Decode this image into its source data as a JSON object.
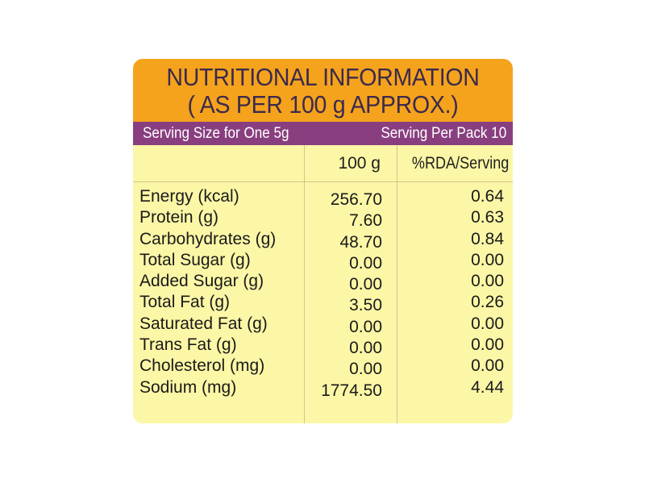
{
  "title": {
    "line1": "NUTRITIONAL INFORMATION",
    "line2": "( AS PER 100 g APPROX.)"
  },
  "serving": {
    "size": "Serving Size for One 5g",
    "per_pack": "Serving Per Pack 10"
  },
  "columns": {
    "amount": "100 g",
    "rda": "%RDA/Serving"
  },
  "nutrients": [
    {
      "name": "Energy (kcal)",
      "amount": "256.70",
      "rda": "0.64"
    },
    {
      "name": "Protein (g)",
      "amount": "7.60",
      "rda": "0.63"
    },
    {
      "name": "Carbohydrates (g)",
      "amount": "48.70",
      "rda": "0.84"
    },
    {
      "name": "Total Sugar (g)",
      "amount": "0.00",
      "rda": "0.00"
    },
    {
      "name": "Added Sugar (g)",
      "amount": "0.00",
      "rda": "0.00"
    },
    {
      "name": "Total Fat (g)",
      "amount": "3.50",
      "rda": "0.26"
    },
    {
      "name": "Saturated Fat (g)",
      "amount": "0.00",
      "rda": "0.00"
    },
    {
      "name": "Trans Fat (g)",
      "amount": "0.00",
      "rda": "0.00"
    },
    {
      "name": "Cholesterol (mg)",
      "amount": "0.00",
      "rda": "0.00"
    },
    {
      "name": "Sodium (mg)",
      "amount": "1774.50",
      "rda": "4.44"
    }
  ],
  "colors": {
    "title_band": "#f5a31c",
    "serving_band": "#893f7f",
    "card_background": "#fcf7a6",
    "title_text": "#3b2a4d"
  }
}
